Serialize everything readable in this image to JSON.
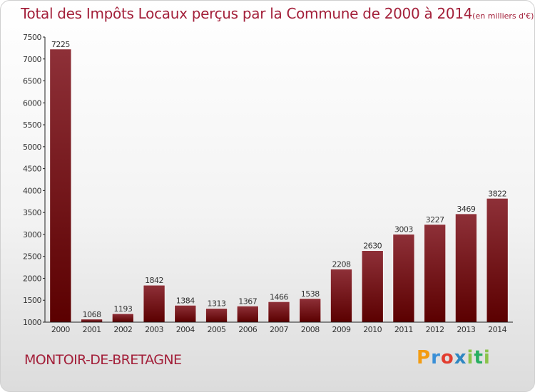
{
  "title": "Total des Impôts Locaux perçus par la Commune de 2000 à 2014",
  "title_unit": "(en milliers d'€)",
  "commune": "MONTOIR-DE-BRETAGNE",
  "logo": [
    "P",
    "r",
    "o",
    "x",
    "i",
    "t",
    "i"
  ],
  "colors": {
    "bar_top": "#8e3038",
    "bar_bottom": "#5b0000",
    "title": "#a3203a",
    "axis": "#222222"
  },
  "chart_data": {
    "type": "bar",
    "categories": [
      "2000",
      "2001",
      "2002",
      "2003",
      "2004",
      "2005",
      "2006",
      "2007",
      "2008",
      "2009",
      "2010",
      "2011",
      "2012",
      "2013",
      "2014"
    ],
    "values": [
      7225,
      1068,
      1193,
      1842,
      1384,
      1313,
      1367,
      1466,
      1538,
      2208,
      2630,
      3003,
      3227,
      3469,
      3822
    ],
    "ylim": [
      1000,
      7500
    ],
    "yticks": [
      1000,
      1500,
      2000,
      2500,
      3000,
      3500,
      4000,
      4500,
      5000,
      5500,
      6000,
      6500,
      7000,
      7500
    ],
    "data_labels": true,
    "grid": false
  }
}
